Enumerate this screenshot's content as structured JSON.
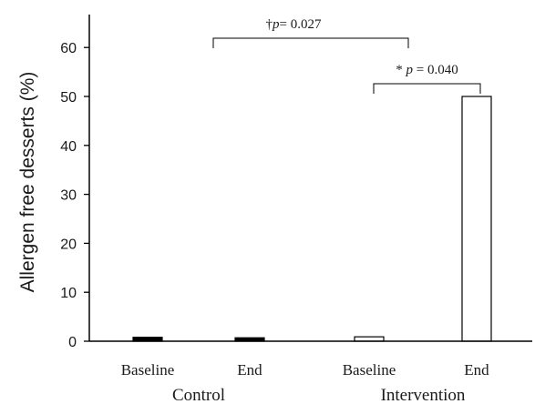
{
  "chart_data": {
    "type": "bar",
    "ylabel": "Allergen free desserts (%)",
    "ylim": [
      0,
      65
    ],
    "yticks": [
      0,
      10,
      20,
      30,
      40,
      50,
      60
    ],
    "categories": [
      "Baseline",
      "End",
      "Baseline",
      "End"
    ],
    "groups": [
      {
        "label": "Control",
        "categories": [
          0,
          1
        ]
      },
      {
        "label": "Intervention",
        "categories": [
          2,
          3
        ]
      }
    ],
    "values": [
      0.8,
      0.7,
      0.9,
      50
    ],
    "bar_fills": [
      "#000000",
      "#000000",
      "#ffffff",
      "#ffffff"
    ],
    "annotations": [
      {
        "prefix": "†",
        "italic": "p",
        "rest": "= 0.027",
        "from": 1,
        "to": 2
      },
      {
        "prefix": "* ",
        "italic": "p",
        "rest": " = 0.040",
        "from": 2,
        "to": 3
      }
    ]
  }
}
